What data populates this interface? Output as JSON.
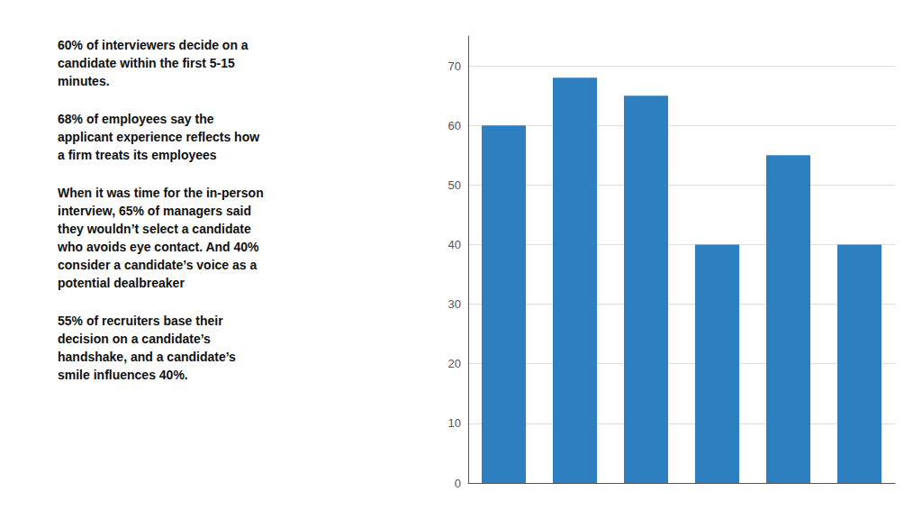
{
  "chart_data": {
    "type": "bar",
    "categories": [
      null,
      null,
      null,
      null,
      null,
      null
    ],
    "values": [
      60,
      68,
      65,
      40,
      55,
      40
    ],
    "color": "#2e7fc0",
    "ylim": [
      0,
      75
    ],
    "yticks": [
      0,
      10,
      20,
      30,
      40,
      50,
      60,
      70
    ],
    "grid": true,
    "tick_labels": "y",
    "annotations": [
      "60% of interviewers decide on a\ncandidate within the first 5-15\nminutes.",
      "68% of employees say the\napplicant experience reflects how\na firm treats its employees",
      "When it was time for the in-person\ninterview, 65% of managers said\nthey wouldn’t select a candidate\nwho avoids eye contact. And 40%\nconsider a candidate’s voice as a\npotential dealbreaker",
      "55% of recruiters base their\ndecision on a candidate’s\nhandshake, and a candidate’s\nsmile influences 40%."
    ]
  }
}
